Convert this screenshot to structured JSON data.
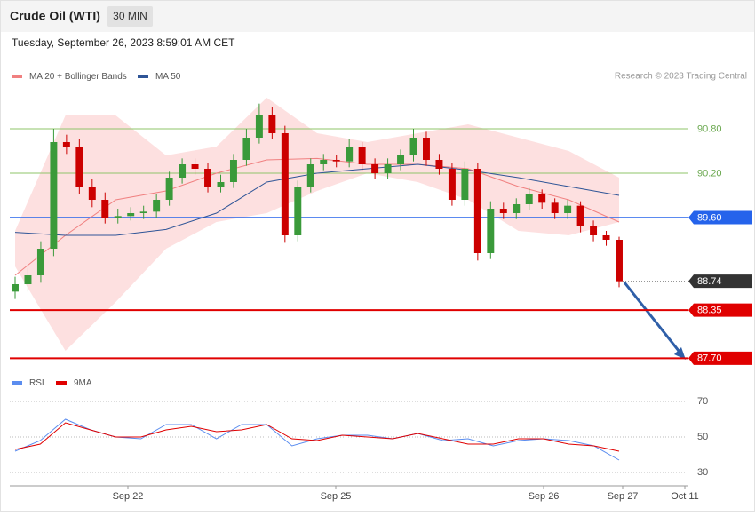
{
  "header": {
    "title": "Crude Oil (WTI)",
    "timeframe": "30 MIN",
    "timestamp": "Tuesday, September 26, 2023 8:59:01 AM CET"
  },
  "credit": "Research © 2023 Trading Central",
  "x_labels": [
    "Sep 22",
    "Sep 25",
    "Sep 26",
    "Sep 27",
    "Oct 11"
  ],
  "chart_data": [
    {
      "type": "candlestick",
      "ylim": [
        87.62,
        91.34
      ],
      "up_color": "#3a9a3a",
      "down_color": "#cc0000",
      "open": [
        88.6,
        88.7,
        88.82,
        89.18,
        90.62,
        90.56,
        90.02,
        89.84,
        89.6,
        89.62,
        89.66,
        89.68,
        89.84,
        90.14,
        90.32,
        90.26,
        90.02,
        90.08,
        90.38,
        90.68,
        90.98,
        90.74,
        89.36,
        90.02,
        90.32,
        90.38,
        90.36,
        90.56,
        90.32,
        90.2,
        90.32,
        90.44,
        90.68,
        90.38,
        90.26,
        89.84,
        90.26,
        89.12,
        89.72,
        89.66,
        89.78,
        89.92,
        89.8,
        89.66,
        89.76,
        89.48,
        89.36,
        89.3
      ],
      "high": [
        88.8,
        88.92,
        89.28,
        90.8,
        90.72,
        90.66,
        90.12,
        89.94,
        89.72,
        89.74,
        89.76,
        89.92,
        90.22,
        90.4,
        90.4,
        90.34,
        90.18,
        90.46,
        90.8,
        91.14,
        91.1,
        90.84,
        90.1,
        90.4,
        90.46,
        90.44,
        90.66,
        90.62,
        90.4,
        90.4,
        90.52,
        90.8,
        90.76,
        90.46,
        90.34,
        90.36,
        90.34,
        89.82,
        89.8,
        89.86,
        90.0,
        89.98,
        89.86,
        89.84,
        89.82,
        89.56,
        89.42,
        89.34
      ],
      "low": [
        88.5,
        88.6,
        88.72,
        89.08,
        90.46,
        89.92,
        89.74,
        89.52,
        89.52,
        89.56,
        89.58,
        89.6,
        89.76,
        90.06,
        90.18,
        89.94,
        89.94,
        90.0,
        90.3,
        90.6,
        90.66,
        89.26,
        89.28,
        89.94,
        90.24,
        90.28,
        90.28,
        90.24,
        90.12,
        90.12,
        90.24,
        90.36,
        90.3,
        90.18,
        89.76,
        89.76,
        89.02,
        89.04,
        89.58,
        89.58,
        89.7,
        89.72,
        89.58,
        89.58,
        89.4,
        89.28,
        89.22,
        88.66
      ],
      "close": [
        88.7,
        88.82,
        89.18,
        90.62,
        90.56,
        90.02,
        89.84,
        89.6,
        89.62,
        89.66,
        89.68,
        89.84,
        90.14,
        90.32,
        90.26,
        90.02,
        90.08,
        90.38,
        90.68,
        90.98,
        90.74,
        89.36,
        90.02,
        90.32,
        90.38,
        90.36,
        90.56,
        90.32,
        90.2,
        90.32,
        90.44,
        90.68,
        90.38,
        90.26,
        89.84,
        90.26,
        89.12,
        89.72,
        89.66,
        89.78,
        89.92,
        89.8,
        89.66,
        89.76,
        89.48,
        89.36,
        89.3,
        88.74
      ],
      "bands": {
        "color": "#fde0e0",
        "upper": [
          89.42,
          90.98,
          90.98,
          90.44,
          90.56,
          91.22,
          90.74,
          90.62,
          90.74,
          90.86,
          90.68,
          90.5,
          90.14
        ],
        "lower": [
          88.94,
          87.8,
          88.46,
          89.18,
          89.54,
          89.66,
          89.96,
          90.2,
          90.08,
          89.84,
          89.42,
          89.36,
          89.54
        ]
      },
      "series": [
        {
          "name": "MA 20 + Bollinger Bands",
          "color": "#f08080",
          "values": [
            88.82,
            89.36,
            89.84,
            89.96,
            90.2,
            90.38,
            90.4,
            90.32,
            90.32,
            90.26,
            90.02,
            89.84,
            89.54
          ]
        },
        {
          "name": "MA 50",
          "color": "#2f5597",
          "values": [
            89.4,
            89.36,
            89.36,
            89.44,
            89.66,
            90.08,
            90.2,
            90.26,
            90.32,
            90.24,
            90.14,
            90.02,
            89.9
          ]
        }
      ],
      "levels": [
        {
          "value": {
            "value": 90.8,
            "label": "90.80"
          },
          "color": "#8fc46a",
          "line": "solid",
          "tag": false
        },
        {
          "value": {
            "value": 90.2,
            "label": "90.20"
          },
          "color": "#8fc46a",
          "line": "solid",
          "tag": false
        },
        {
          "value": {
            "value": 89.6,
            "label": "89.60"
          },
          "color": "#2563eb",
          "line": "solid",
          "tag": true
        },
        {
          "value": 88.74,
          "color": "#333333",
          "line": "dotted",
          "tag": true
        },
        {
          "value": 88.35,
          "color": "#e00000",
          "line": "solid",
          "tag": true
        },
        {
          "value": {
            "value": 87.7,
            "label": "87.70"
          },
          "color": "#e00000",
          "line": "solid",
          "tag": true
        }
      ]
    },
    {
      "type": "line",
      "ylim": [
        26,
        76
      ],
      "yticks": [
        30,
        50,
        70
      ],
      "grid": true,
      "series": [
        {
          "name": "RSI",
          "color": "#5b8def",
          "values": [
            42,
            48,
            60,
            54,
            50,
            49,
            57,
            57,
            49,
            57,
            57,
            45,
            49,
            51,
            51,
            49,
            52,
            48,
            49,
            45,
            48,
            49,
            48,
            45,
            37
          ]
        },
        {
          "name": "9MA",
          "color": "#e00000",
          "values": [
            43,
            46,
            58,
            54,
            50,
            50,
            54,
            56,
            53,
            54,
            57,
            49,
            48,
            51,
            50,
            49,
            52,
            49,
            46,
            46,
            49,
            49,
            46,
            45,
            42
          ]
        }
      ]
    }
  ]
}
